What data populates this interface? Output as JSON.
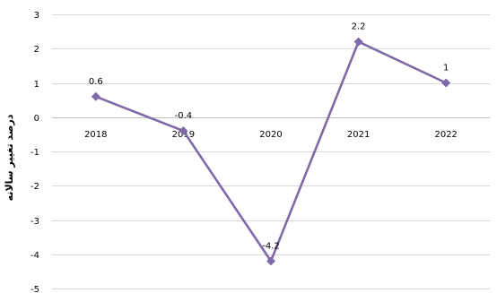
{
  "chart_data": {
    "type": "line",
    "title": "",
    "xlabel": "",
    "ylabel": "درصد تغییر سالانه",
    "categories": [
      "2018",
      "2019",
      "2020",
      "2021",
      "2022"
    ],
    "series": [
      {
        "values": [
          0.6,
          -0.4,
          -4.2,
          2.2,
          1
        ],
        "color": "#7e6aa8",
        "marker": "diamond"
      }
    ],
    "data_labels": [
      "0.6",
      "-0.4",
      "-4.2",
      "2.2",
      "1"
    ],
    "y_ticks": [
      "3",
      "2",
      "1",
      "0",
      "-1",
      "-2",
      "-3",
      "-4",
      "-5"
    ],
    "ylim": [
      -5,
      3
    ],
    "grid": true,
    "legend": "none",
    "category_labels_position": "at-zero-line"
  }
}
